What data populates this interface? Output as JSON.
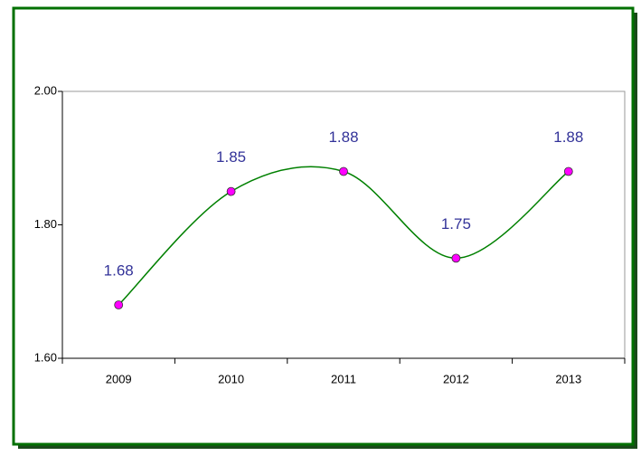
{
  "chart_data": {
    "type": "line",
    "categories": [
      "2009",
      "2010",
      "2011",
      "2012",
      "2013"
    ],
    "series": [
      {
        "color": "#008000",
        "marker_color": "#ff00ff",
        "values": [
          1.68,
          1.85,
          1.88,
          1.75,
          1.88
        ]
      }
    ],
    "ylim": [
      1.6,
      2.0
    ],
    "yticks": [
      {
        "value": 1.6,
        "label": "1.60"
      },
      {
        "value": 1.8,
        "label": "1.80"
      },
      {
        "value": 2.0,
        "label": "2.00"
      }
    ],
    "smooth": true,
    "data_labels": true
  }
}
